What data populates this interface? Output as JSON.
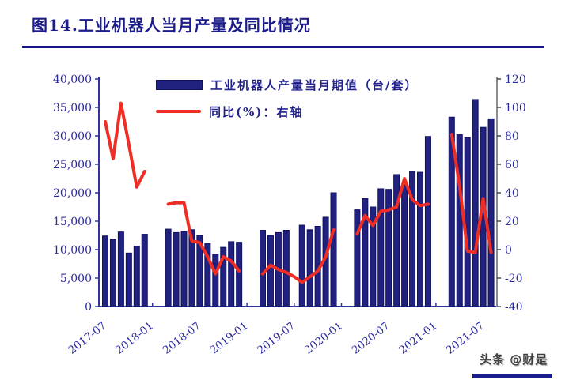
{
  "page": {
    "title": "图14.工业机器人当月产量及同比情况",
    "watermark": "头条 @财是"
  },
  "legend": {
    "bar_label": "工业机器人产量当月期值（台/套）",
    "line_label": "同比(%)：右轴"
  },
  "colors": {
    "title": "#1c1c8a",
    "bar_fill": "#21217f",
    "bar_stroke": "#101060",
    "line": "#ee2d24",
    "axis_text": "#2a2aa0",
    "axis_left": "#3333a0",
    "axis_right": "#8c8c94",
    "watermark_bar": "#1b1b8c"
  },
  "chart_data": {
    "type": "bar+line",
    "title": "图14.工业机器人当月产量及同比情况",
    "bar_series_name": "工业机器人产量当月期值（台/套）",
    "line_series_name": "同比(%)：右轴",
    "left_axis": {
      "min": 0,
      "max": 40000,
      "step": 5000,
      "tick_labels_top_to_bottom": [
        "40,000",
        "35,000",
        "30,000",
        "25,000",
        "20,000",
        "15,000",
        "10,000",
        "5,000",
        "0"
      ]
    },
    "right_axis": {
      "min": -40,
      "max": 120,
      "step": 20,
      "tick_labels_top_to_bottom": [
        "120",
        "100",
        "80",
        "60",
        "40",
        "20",
        "0",
        "-20",
        "-40"
      ]
    },
    "x_tick_labels": [
      "2017-07",
      "2018-01",
      "2018-07",
      "2019-01",
      "2019-07",
      "2020-01",
      "2020-07",
      "2021-01",
      "2021-07"
    ],
    "grid": false,
    "legend_position": "top-inside",
    "points": [
      {
        "month": "2017-07",
        "value": 12400,
        "yoy": 90
      },
      {
        "month": "2017-08",
        "value": 11800,
        "yoy": 64
      },
      {
        "month": "2017-09",
        "value": 13100,
        "yoy": 103
      },
      {
        "month": "2017-10",
        "value": 9400,
        "yoy": 74
      },
      {
        "month": "2017-11",
        "value": 10600,
        "yoy": 44
      },
      {
        "month": "2017-12",
        "value": 12700,
        "yoy": 55
      },
      {
        "month": "2018-03",
        "value": 13600,
        "yoy": 32
      },
      {
        "month": "2018-04",
        "value": 13000,
        "yoy": 33
      },
      {
        "month": "2018-05",
        "value": 13200,
        "yoy": 33
      },
      {
        "month": "2018-06",
        "value": 13500,
        "yoy": 6
      },
      {
        "month": "2018-07",
        "value": 12500,
        "yoy": 5
      },
      {
        "month": "2018-08",
        "value": 11100,
        "yoy": -5
      },
      {
        "month": "2018-09",
        "value": 9200,
        "yoy": -17
      },
      {
        "month": "2018-10",
        "value": 10400,
        "yoy": -5
      },
      {
        "month": "2018-11",
        "value": 11400,
        "yoy": -8
      },
      {
        "month": "2018-12",
        "value": 11300,
        "yoy": -15
      },
      {
        "month": "2019-03",
        "value": 13400,
        "yoy": -17
      },
      {
        "month": "2019-04",
        "value": 12500,
        "yoy": -11
      },
      {
        "month": "2019-05",
        "value": 13000,
        "yoy": -14
      },
      {
        "month": "2019-06",
        "value": 13400,
        "yoy": -16
      },
      {
        "month": "2019-07",
        "value": null,
        "yoy": -19
      },
      {
        "month": "2019-08",
        "value": 14300,
        "yoy": -23
      },
      {
        "month": "2019-09",
        "value": 13500,
        "yoy": -19
      },
      {
        "month": "2019-10",
        "value": 14100,
        "yoy": -15
      },
      {
        "month": "2019-11",
        "value": 15700,
        "yoy": -5
      },
      {
        "month": "2019-12",
        "value": 20000,
        "yoy": 14
      },
      {
        "month": "2020-03",
        "value": 17000,
        "yoy": 11
      },
      {
        "month": "2020-04",
        "value": 19000,
        "yoy": 24
      },
      {
        "month": "2020-05",
        "value": 17500,
        "yoy": 17
      },
      {
        "month": "2020-06",
        "value": 20700,
        "yoy": 27
      },
      {
        "month": "2020-07",
        "value": 20600,
        "yoy": 28
      },
      {
        "month": "2020-08",
        "value": 23200,
        "yoy": 30
      },
      {
        "month": "2020-09",
        "value": 21400,
        "yoy": 50
      },
      {
        "month": "2020-10",
        "value": 23800,
        "yoy": 35
      },
      {
        "month": "2020-11",
        "value": 23600,
        "yoy": 31
      },
      {
        "month": "2020-12",
        "value": 29900,
        "yoy": 32
      },
      {
        "month": "2021-03",
        "value": 33300,
        "yoy": 81
      },
      {
        "month": "2021-04",
        "value": 30200,
        "yoy": 45
      },
      {
        "month": "2021-05",
        "value": 29700,
        "yoy": -1
      },
      {
        "month": "2021-06",
        "value": 36400,
        "yoy": -2
      },
      {
        "month": "2021-07",
        "value": 31500,
        "yoy": 36
      },
      {
        "month": "2021-08",
        "value": 33000,
        "yoy": -2
      }
    ]
  }
}
